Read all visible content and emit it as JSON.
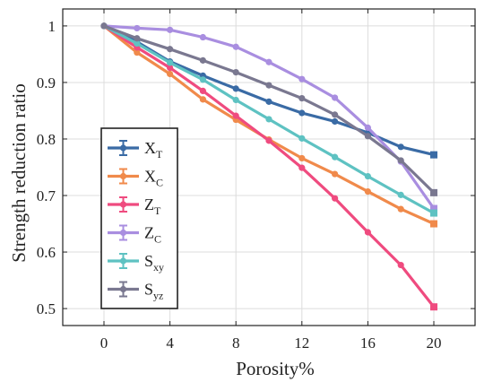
{
  "chart_data": {
    "type": "line",
    "title": "",
    "xlabel": "Porosity%",
    "ylabel": "Strength reduction ratio",
    "xlim": [
      -2.5,
      22.5
    ],
    "ylim": [
      0.47,
      1.03
    ],
    "xticks": [
      0,
      4,
      8,
      12,
      16,
      20
    ],
    "yticks": [
      0.5,
      0.6,
      0.7,
      0.8,
      0.9,
      1
    ],
    "ytick_labels": [
      "0.5",
      "0.6",
      "0.7",
      "0.8",
      "0.9",
      "1"
    ],
    "grid": true,
    "legend_position": "lower-left",
    "x": [
      0,
      2,
      4,
      6,
      8,
      10,
      12,
      14,
      16,
      18,
      20
    ],
    "series": [
      {
        "name": "X",
        "sub": "T",
        "color": "#3a6ba5",
        "values": [
          1.0,
          0.972,
          0.937,
          0.912,
          0.889,
          0.866,
          0.846,
          0.831,
          0.811,
          0.786,
          0.772
        ]
      },
      {
        "name": "X",
        "sub": "C",
        "color": "#f08a4b",
        "values": [
          1.0,
          0.953,
          0.915,
          0.87,
          0.834,
          0.799,
          0.766,
          0.738,
          0.707,
          0.676,
          0.65
        ]
      },
      {
        "name": "Z",
        "sub": "T",
        "color": "#ef4b7f",
        "values": [
          1.0,
          0.962,
          0.926,
          0.885,
          0.841,
          0.797,
          0.749,
          0.695,
          0.635,
          0.577,
          0.503
        ]
      },
      {
        "name": "Z",
        "sub": "C",
        "color": "#a98ee0",
        "values": [
          1.0,
          0.996,
          0.993,
          0.98,
          0.963,
          0.936,
          0.906,
          0.873,
          0.82,
          0.76,
          0.677
        ]
      },
      {
        "name": "S",
        "sub": "xy",
        "color": "#5ec2c2",
        "values": [
          1.0,
          0.969,
          0.935,
          0.905,
          0.869,
          0.835,
          0.801,
          0.768,
          0.734,
          0.701,
          0.669
        ]
      },
      {
        "name": "S",
        "sub": "yz",
        "color": "#7a7890",
        "values": [
          1.0,
          0.978,
          0.959,
          0.939,
          0.918,
          0.895,
          0.872,
          0.843,
          0.805,
          0.762,
          0.705
        ]
      }
    ]
  }
}
